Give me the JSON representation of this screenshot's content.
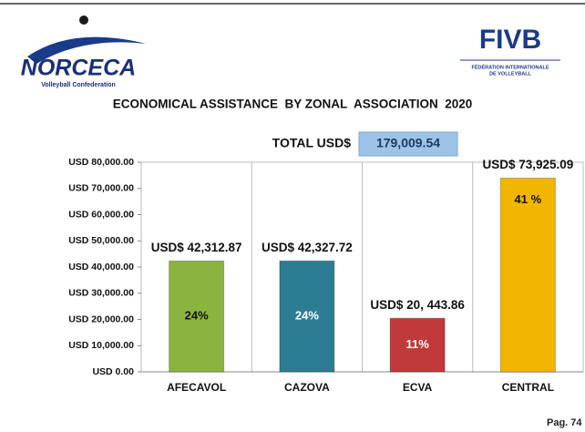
{
  "header": {
    "left_logo": "NORCECA",
    "left_logo_sub": "Volleyball Confederation",
    "right_logo": "FIVB",
    "right_logo_sub_1": "FÉDÉRATION INTERNATIONALE",
    "right_logo_sub_2": "DE VOLLEYBALL"
  },
  "footer": "Pag. 74",
  "chart_data": {
    "type": "bar",
    "title": "ECONOMICAL ASSISTANCE  BY ZONAL  ASSOCIATION  2020",
    "total": {
      "label": "TOTAL USD$",
      "value": 179009.54,
      "value_label": "179,009.54"
    },
    "categories": [
      "AFECAVOL",
      "CAZOVA",
      "ECVA",
      "CENTRAL"
    ],
    "values": [
      42312.87,
      42327.72,
      20443.86,
      73925.09
    ],
    "value_labels": [
      "USD$ 42,312.87",
      "USD$ 42,327.72",
      "USD$ 20, 443.86",
      "USD$ 73,925.09"
    ],
    "share_labels": [
      "24%",
      "24%",
      "11%",
      "41 %"
    ],
    "colors": [
      "#8ab43f",
      "#2c7d93",
      "#c0393b",
      "#f2b600"
    ],
    "ylim": [
      0,
      80000
    ],
    "yticks": [
      {
        "value": 0,
        "label": "USD 0.00"
      },
      {
        "value": 10000,
        "label": "USD 10,000.00"
      },
      {
        "value": 20000,
        "label": "USD 20,000.00"
      },
      {
        "value": 30000,
        "label": "USD 30,000.00"
      },
      {
        "value": 40000,
        "label": "USD 40,000.00"
      },
      {
        "value": 50000,
        "label": "USD 50,000.00"
      },
      {
        "value": 60000,
        "label": "USD 60,000.00"
      },
      {
        "value": 70000,
        "label": "USD 70,000.00"
      },
      {
        "value": 80000,
        "label": "USD 80,000.00"
      }
    ],
    "grid": false
  }
}
